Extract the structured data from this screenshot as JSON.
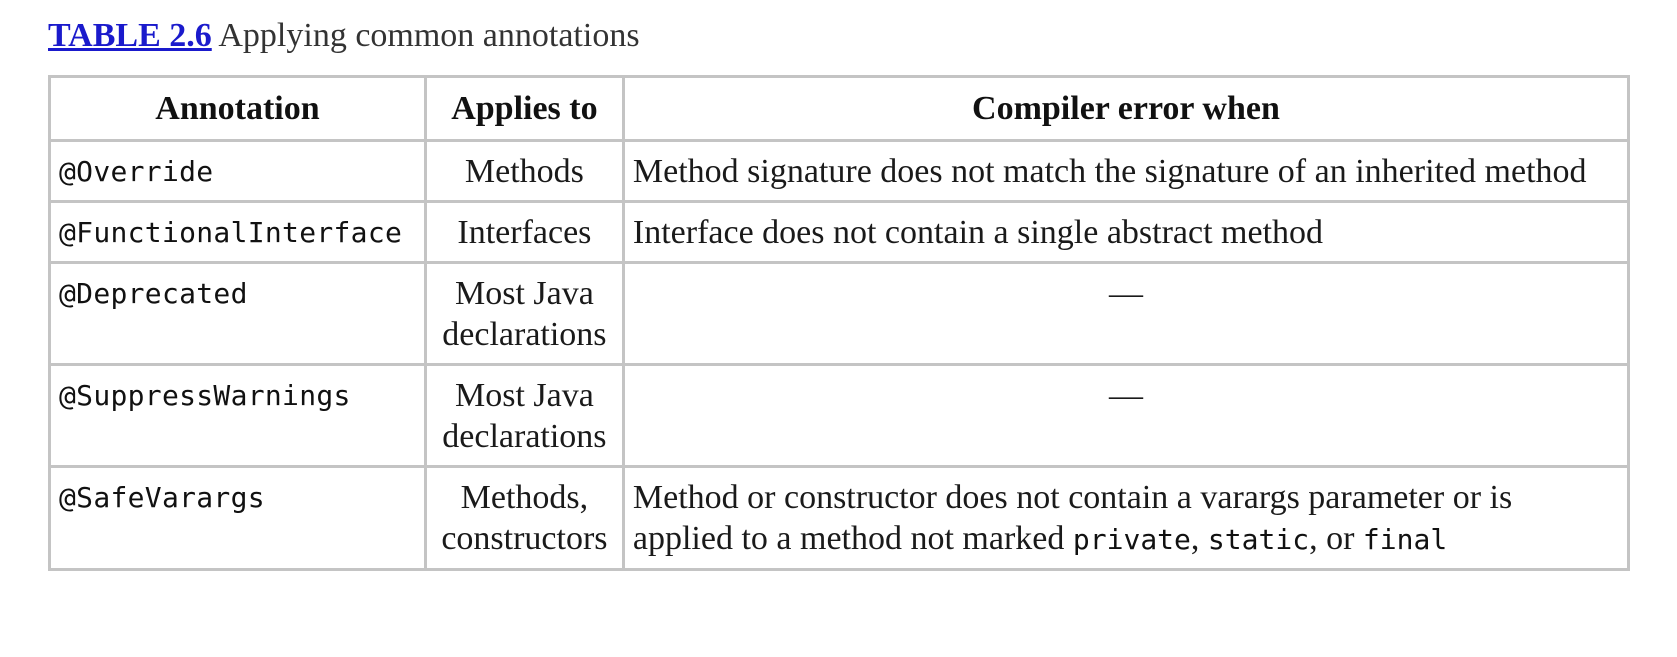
{
  "caption": {
    "label": "TABLE 2.6",
    "title": "Applying common annotations"
  },
  "table": {
    "headers": [
      "Annotation",
      "Applies to",
      "Compiler error when"
    ],
    "rows": [
      {
        "annotation": "@Override",
        "applies_line1": "Methods",
        "applies_line2": "",
        "error": "Method signature does not match the signature of an inherited method"
      },
      {
        "annotation": "@FunctionalInterface",
        "applies_line1": "Interfaces",
        "applies_line2": "",
        "error": "Interface does not contain a single abstract method"
      },
      {
        "annotation": "@Deprecated",
        "applies_line1": "Most Java",
        "applies_line2": "declarations",
        "error": "—"
      },
      {
        "annotation": "@SuppressWarnings",
        "applies_line1": "Most Java",
        "applies_line2": "declarations",
        "error": "—"
      },
      {
        "annotation": "@SafeVarargs",
        "applies_line1": "Methods,",
        "applies_line2": "constructors",
        "error_parts": {
          "text1": "Method or constructor does not contain a varargs parameter or is applied to a method not marked ",
          "kw1": "private",
          "sep1": ", ",
          "kw2": "static",
          "sep2": ", or ",
          "kw3": "final"
        }
      }
    ]
  }
}
